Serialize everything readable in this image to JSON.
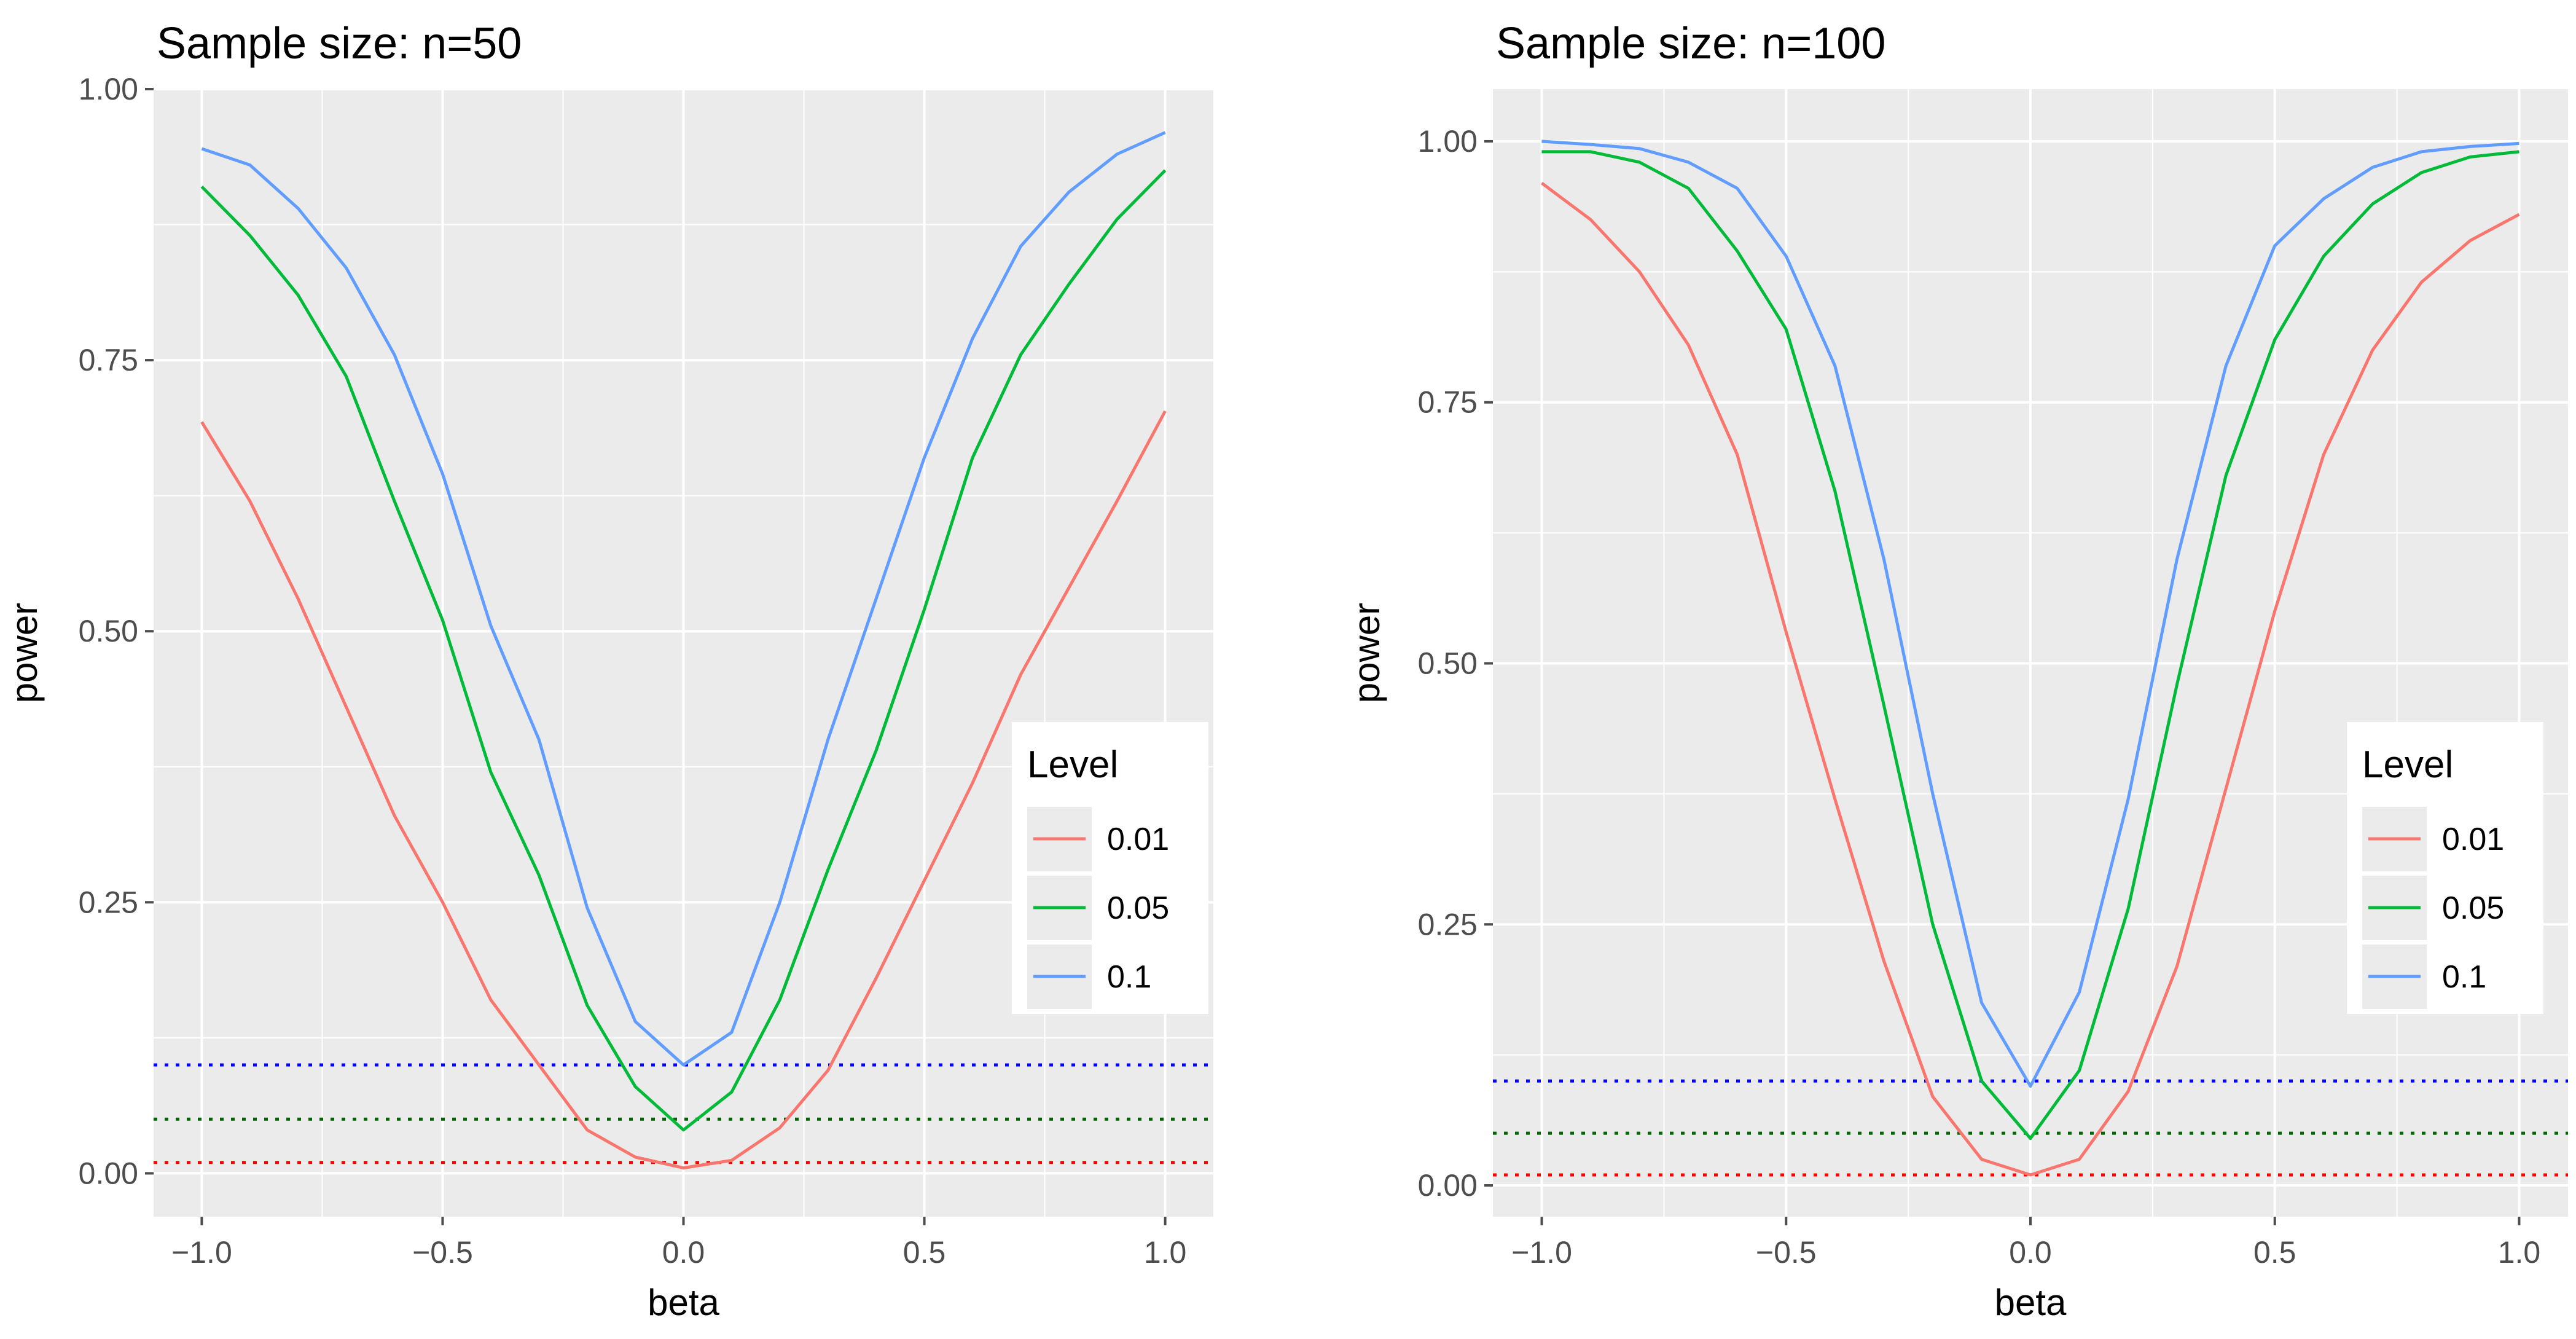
{
  "chart_data": [
    {
      "type": "line",
      "title": "Sample size: n=50",
      "xlabel": "beta",
      "ylabel": "power",
      "xlim": [
        -1.1,
        1.1
      ],
      "ylim": [
        -0.04,
        1.0
      ],
      "x_ticks": [
        -1.0,
        -0.5,
        0.0,
        0.5,
        1.0
      ],
      "x_tick_labels": [
        "−1.0",
        "−0.5",
        "0.0",
        "0.5",
        "1.0"
      ],
      "y_ticks": [
        0.0,
        0.25,
        0.5,
        0.75,
        1.0
      ],
      "y_tick_labels": [
        "0.00",
        "0.25",
        "0.50",
        "0.75",
        "1.00"
      ],
      "x": [
        -1.0,
        -0.9,
        -0.8,
        -0.7,
        -0.6,
        -0.5,
        -0.4,
        -0.3,
        -0.2,
        -0.1,
        0.0,
        0.1,
        0.2,
        0.3,
        0.4,
        0.5,
        0.6,
        0.7,
        0.8,
        0.9,
        1.0
      ],
      "series": [
        {
          "name": "0.01",
          "values": [
            0.693,
            0.62,
            0.53,
            0.43,
            0.33,
            0.25,
            0.16,
            0.1,
            0.04,
            0.015,
            0.005,
            0.012,
            0.042,
            0.095,
            0.18,
            0.27,
            0.36,
            0.46,
            0.54,
            0.62,
            0.703
          ]
        },
        {
          "name": "0.05",
          "values": [
            0.91,
            0.865,
            0.81,
            0.735,
            0.62,
            0.51,
            0.37,
            0.275,
            0.155,
            0.08,
            0.04,
            0.075,
            0.16,
            0.28,
            0.39,
            0.52,
            0.66,
            0.755,
            0.82,
            0.88,
            0.925
          ]
        },
        {
          "name": "0.1",
          "values": [
            0.945,
            0.93,
            0.89,
            0.835,
            0.755,
            0.645,
            0.505,
            0.4,
            0.245,
            0.14,
            0.1,
            0.13,
            0.25,
            0.4,
            0.53,
            0.66,
            0.77,
            0.855,
            0.905,
            0.94,
            0.96
          ]
        }
      ],
      "reference_lines": [
        {
          "level": "0.01",
          "y": 0.01
        },
        {
          "level": "0.05",
          "y": 0.05
        },
        {
          "level": "0.1",
          "y": 0.1
        }
      ]
    },
    {
      "type": "line",
      "title": "Sample size: n=100",
      "xlabel": "beta",
      "ylabel": "power",
      "xlim": [
        -1.1,
        1.1
      ],
      "ylim": [
        -0.03,
        1.05
      ],
      "x_ticks": [
        -1.0,
        -0.5,
        0.0,
        0.5,
        1.0
      ],
      "x_tick_labels": [
        "−1.0",
        "−0.5",
        "0.0",
        "0.5",
        "1.0"
      ],
      "y_ticks": [
        0.0,
        0.25,
        0.5,
        0.75,
        1.0
      ],
      "y_tick_labels": [
        "0.00",
        "0.25",
        "0.50",
        "0.75",
        "1.00"
      ],
      "x": [
        -1.0,
        -0.9,
        -0.8,
        -0.7,
        -0.6,
        -0.5,
        -0.4,
        -0.3,
        -0.2,
        -0.1,
        0.0,
        0.1,
        0.2,
        0.3,
        0.4,
        0.5,
        0.6,
        0.7,
        0.8,
        0.9,
        1.0
      ],
      "series": [
        {
          "name": "0.01",
          "values": [
            0.96,
            0.925,
            0.875,
            0.805,
            0.7,
            0.53,
            0.37,
            0.215,
            0.085,
            0.025,
            0.01,
            0.025,
            0.09,
            0.21,
            0.38,
            0.55,
            0.7,
            0.8,
            0.865,
            0.905,
            0.93
          ]
        },
        {
          "name": "0.05",
          "values": [
            0.99,
            0.99,
            0.98,
            0.955,
            0.895,
            0.82,
            0.665,
            0.46,
            0.25,
            0.1,
            0.045,
            0.11,
            0.265,
            0.48,
            0.68,
            0.81,
            0.89,
            0.94,
            0.97,
            0.985,
            0.99
          ]
        },
        {
          "name": "0.1",
          "values": [
            1.0,
            0.997,
            0.993,
            0.98,
            0.955,
            0.89,
            0.785,
            0.6,
            0.375,
            0.175,
            0.095,
            0.185,
            0.37,
            0.6,
            0.785,
            0.9,
            0.945,
            0.975,
            0.99,
            0.995,
            0.998
          ]
        }
      ],
      "reference_lines": [
        {
          "level": "0.01",
          "y": 0.01
        },
        {
          "level": "0.05",
          "y": 0.05
        },
        {
          "level": "0.1",
          "y": 0.1
        }
      ]
    }
  ],
  "legend": {
    "title": "Level",
    "position": "right"
  },
  "colors": {
    "series": [
      "#F8766D",
      "#00BA38",
      "#619CFF"
    ],
    "reference_lines": [
      "#FF0000",
      "#006400",
      "#0000FF"
    ],
    "panel_background": "#EBEBEB",
    "grid": "#FFFFFF",
    "axis_text": "#4D4D4D",
    "title_text": "#000000"
  }
}
